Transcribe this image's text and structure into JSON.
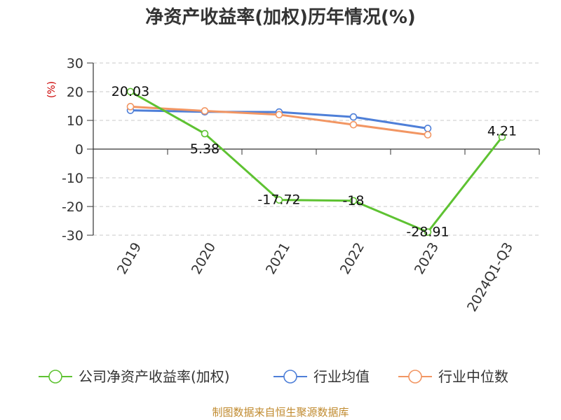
{
  "chart_data": {
    "type": "line",
    "title": "净资产收益率(加权)历年情况(%)",
    "ylabel": "(%)",
    "categories": [
      "2019",
      "2020",
      "2021",
      "2022",
      "2023",
      "2024Q1-Q3"
    ],
    "ylim": [
      -30,
      30
    ],
    "yticks": [
      30,
      20,
      10,
      0,
      -10,
      -20,
      -30
    ],
    "grid": "horizontal-dashed",
    "legend_position": "bottom",
    "series": [
      {
        "name": "公司净资产收益率(加权)",
        "color": "#5ec232",
        "values": [
          20.03,
          5.38,
          -17.72,
          -18,
          -28.91,
          4.21
        ],
        "labels": [
          "20.03",
          "5.38",
          "-17.72",
          "-18",
          "-28.91",
          "4.21"
        ]
      },
      {
        "name": "行业均值",
        "color": "#4e7fd8",
        "values": [
          13.5,
          13.0,
          12.9,
          11.2,
          7.2,
          null
        ]
      },
      {
        "name": "行业中位数",
        "color": "#f29663",
        "values": [
          14.8,
          13.3,
          12.0,
          8.5,
          5.0,
          null
        ]
      }
    ]
  },
  "source": "制图数据来自恒生聚源数据库"
}
